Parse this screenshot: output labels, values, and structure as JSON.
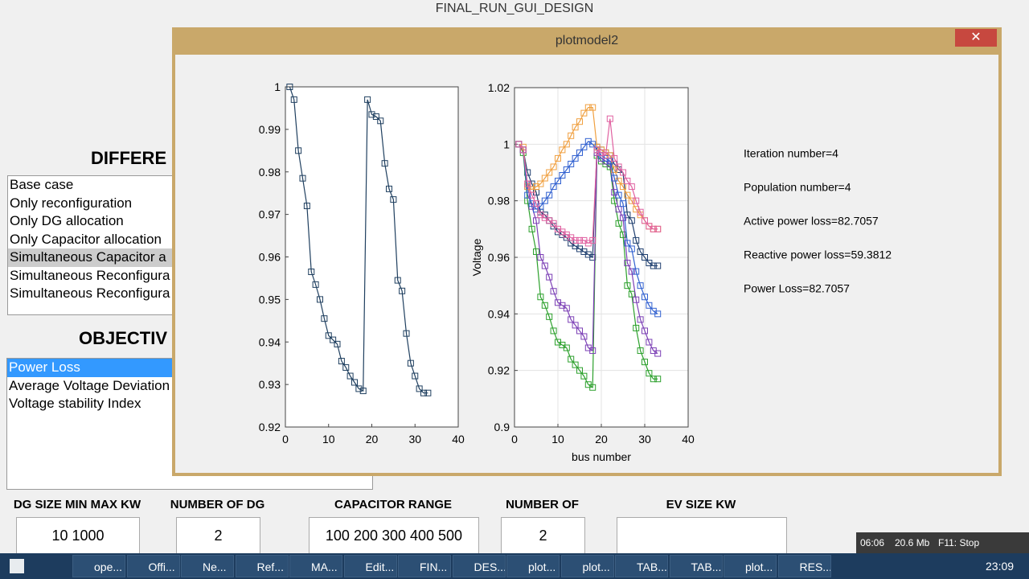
{
  "window": {
    "title": "FINAL_RUN_GUI_DESIGN"
  },
  "left_panel": {
    "heading_1": "DIFFERE",
    "case_list": [
      "Base case",
      "Only reconfiguration",
      "Only DG allocation",
      "Only Capacitor allocation",
      "Simultaneous Capacitor a",
      "Simultaneous Reconfigura",
      "Simultaneous Reconfigura"
    ],
    "heading_2": "OBJECTIV",
    "objective_list": [
      "Power Loss",
      "Average Voltage Deviation",
      "Voltage stability Index"
    ]
  },
  "inputs": [
    {
      "label": "DG SIZE MIN MAX KW",
      "value": "10  1000"
    },
    {
      "label": "NUMBER OF DG",
      "value": "2"
    },
    {
      "label": "CAPACITOR RANGE",
      "value": "100  200  300  400  500"
    },
    {
      "label": "NUMBER OF",
      "value": "2"
    },
    {
      "label": "EV SIZE KW"
    }
  ],
  "plot_window": {
    "title": "plotmodel2",
    "info": [
      "Iteration number=4",
      "Population number=4",
      "Active power loss=82.7057",
      "Reactive power loss=59.3812",
      "Power Loss=82.7057"
    ]
  },
  "chart_data": [
    {
      "type": "line",
      "x": [
        1,
        2,
        3,
        4,
        5,
        6,
        7,
        8,
        9,
        10,
        11,
        12,
        13,
        14,
        15,
        16,
        17,
        18,
        19,
        20,
        21,
        22,
        23,
        24,
        25,
        26,
        27,
        28,
        29,
        30,
        31,
        32,
        33
      ],
      "xlim": [
        0,
        40
      ],
      "xticks": [
        0,
        10,
        20,
        30,
        40
      ],
      "ylim": [
        0.92,
        1
      ],
      "yticks": [
        0.92,
        0.93,
        0.94,
        0.95,
        0.96,
        0.97,
        0.98,
        0.99,
        1
      ],
      "series": [
        {
          "color": "#1f3f5f",
          "values": [
            1,
            0.997,
            0.985,
            0.9785,
            0.972,
            0.9565,
            0.9535,
            0.95,
            0.9455,
            0.9415,
            0.9405,
            0.9395,
            0.9355,
            0.934,
            0.932,
            0.9305,
            0.929,
            0.9285,
            0.997,
            0.9935,
            0.993,
            0.992,
            0.982,
            0.976,
            0.9735,
            0.9545,
            0.952,
            0.942,
            0.935,
            0.932,
            0.929,
            0.928,
            0.928
          ]
        }
      ]
    },
    {
      "type": "line",
      "xlabel": "bus number",
      "ylabel": "Voltage",
      "grid": true,
      "x": [
        1,
        2,
        3,
        4,
        5,
        6,
        7,
        8,
        9,
        10,
        11,
        12,
        13,
        14,
        15,
        16,
        17,
        18,
        19,
        20,
        21,
        22,
        23,
        24,
        25,
        26,
        27,
        28,
        29,
        30,
        31,
        32,
        33
      ],
      "xlim": [
        0,
        40
      ],
      "xticks": [
        0,
        10,
        20,
        30,
        40
      ],
      "ylim": [
        0.9,
        1.02
      ],
      "yticks": [
        0.9,
        0.92,
        0.94,
        0.96,
        0.98,
        1,
        1.02
      ],
      "series": [
        {
          "color": "#1f3f6f",
          "values": [
            1,
            0.998,
            0.99,
            0.986,
            0.983,
            0.976,
            0.975,
            0.973,
            0.971,
            0.969,
            0.968,
            0.967,
            0.965,
            0.964,
            0.963,
            0.962,
            0.961,
            0.96,
            0.999,
            0.998,
            0.997,
            0.996,
            0.993,
            0.991,
            0.99,
            0.975,
            0.973,
            0.966,
            0.962,
            0.96,
            0.958,
            0.957,
            0.957
          ]
        },
        {
          "color": "#2ca02c",
          "values": [
            1,
            0.997,
            0.98,
            0.97,
            0.962,
            0.946,
            0.943,
            0.939,
            0.934,
            0.93,
            0.929,
            0.928,
            0.924,
            0.922,
            0.92,
            0.918,
            0.915,
            0.914,
            0.996,
            0.994,
            0.993,
            0.992,
            0.98,
            0.972,
            0.968,
            0.95,
            0.947,
            0.935,
            0.927,
            0.923,
            0.919,
            0.917,
            0.917
          ]
        },
        {
          "color": "#7b3fb5",
          "values": [
            1,
            0.998,
            0.985,
            0.978,
            0.973,
            0.96,
            0.957,
            0.953,
            0.948,
            0.944,
            0.943,
            0.942,
            0.938,
            0.936,
            0.934,
            0.932,
            0.928,
            0.927,
            0.997,
            0.995,
            0.994,
            0.993,
            0.983,
            0.977,
            0.974,
            0.958,
            0.955,
            0.945,
            0.938,
            0.934,
            0.93,
            0.927,
            0.926
          ]
        },
        {
          "color": "#f0a040",
          "values": [
            1,
            0.999,
            0.985,
            0.984,
            0.985,
            0.986,
            0.988,
            0.99,
            0.992,
            0.995,
            0.998,
            1,
            1.003,
            1.006,
            1.008,
            1.011,
            1.013,
            1.013,
            0.999,
            0.998,
            0.997,
            0.996,
            0.991,
            0.987,
            0.985,
            0.982,
            0.98,
            0.977,
            0.975,
            0.973,
            0.971,
            0.97,
            0.97
          ]
        },
        {
          "color": "#3060d0",
          "values": [
            1,
            0.998,
            0.982,
            0.979,
            0.977,
            0.978,
            0.98,
            0.982,
            0.985,
            0.987,
            0.989,
            0.991,
            0.993,
            0.995,
            0.997,
            0.999,
            1.001,
            1,
            0.998,
            0.996,
            0.995,
            0.994,
            0.988,
            0.982,
            0.979,
            0.965,
            0.963,
            0.955,
            0.95,
            0.946,
            0.943,
            0.941,
            0.94
          ]
        },
        {
          "color": "#e060a0",
          "values": [
            1,
            0.998,
            0.986,
            0.982,
            0.979,
            0.975,
            0.974,
            0.973,
            0.972,
            0.97,
            0.969,
            0.968,
            0.967,
            0.966,
            0.966,
            0.966,
            0.965,
            0.966,
            0.998,
            0.997,
            0.996,
            1.009,
            0.995,
            0.992,
            0.99,
            0.987,
            0.985,
            0.98,
            0.976,
            0.973,
            0.971,
            0.97,
            0.97
          ]
        }
      ]
    }
  ],
  "taskbar": {
    "items": [
      "ope...",
      "Offi...",
      "Ne...",
      "Ref...",
      "MA...",
      "Edit...",
      "FIN...",
      "DES...",
      "plot...",
      "plot...",
      "TAB...",
      "TAB...",
      "plot...",
      "RES..."
    ],
    "recorder": [
      "06:06",
      "20.6 Mb",
      "F11: Stop"
    ],
    "clock": "23:09"
  }
}
